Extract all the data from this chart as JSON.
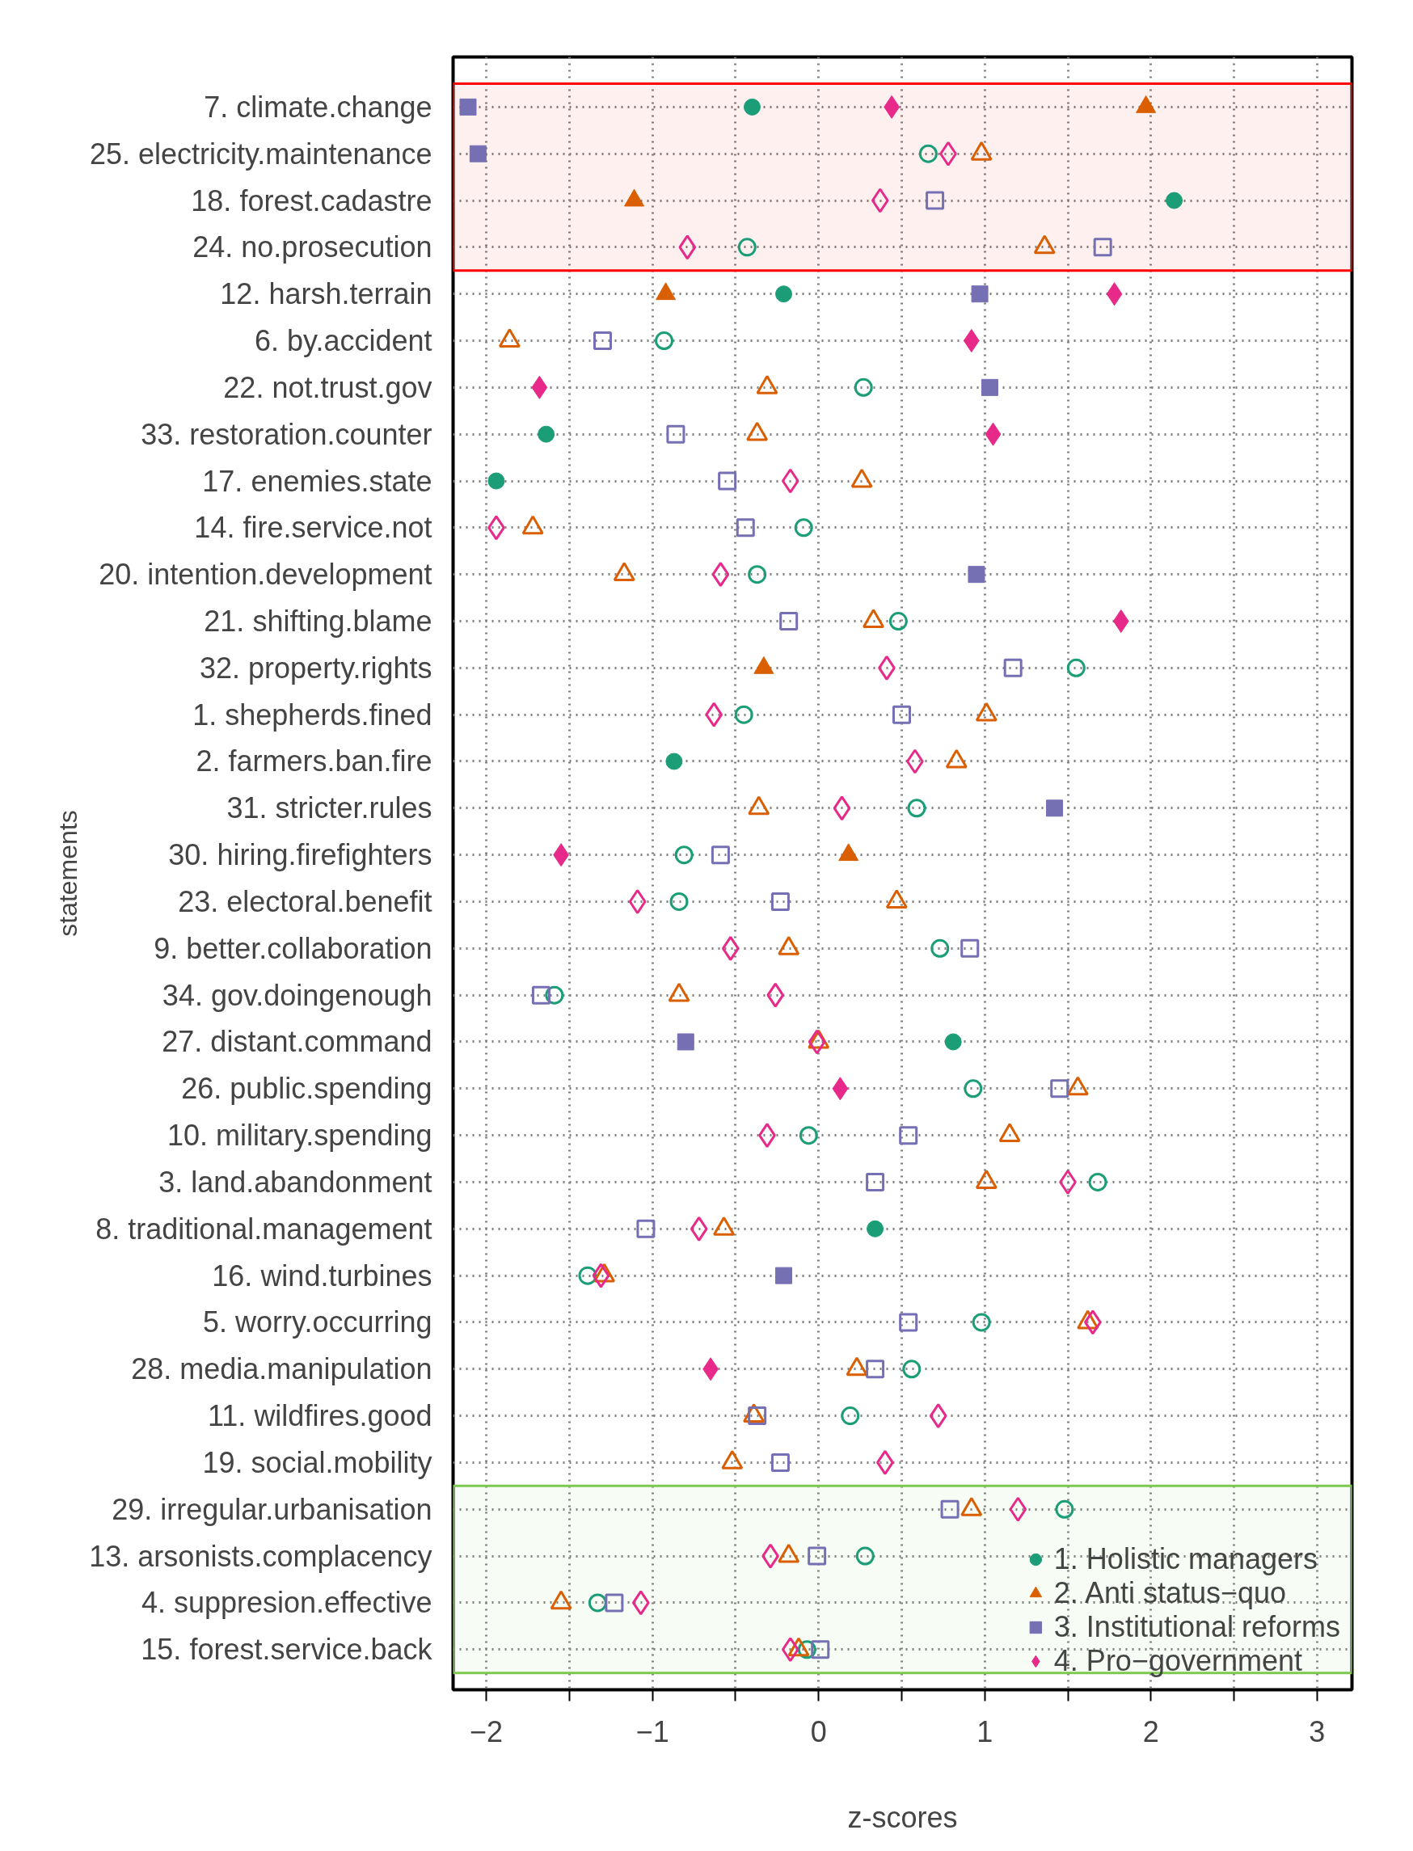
{
  "chart_data": {
    "type": "scatter",
    "xlabel": "z-scores",
    "ylabel": "statements",
    "categories": [
      "7. climate.change",
      "25. electricity.maintenance",
      "18. forest.cadastre",
      "24. no.prosecution",
      "12. harsh.terrain",
      "6. by.accident",
      "22. not.trust.gov",
      "33. restoration.counter",
      "17. enemies.state",
      "14. fire.service.not",
      "20. intention.development",
      "21. shifting.blame",
      "32. property.rights",
      "1. shepherds.fined",
      "2. farmers.ban.fire",
      "31. stricter.rules",
      "30. hiring.firefighters",
      "23. electoral.benefit",
      "9. better.collaboration",
      "34. gov.doingenough",
      "27. distant.command",
      "26. public.spending",
      "10. military.spending",
      "3. land.abandonment",
      "8. traditional.management",
      "16. wind.turbines",
      "5. worry.occurring",
      "28. media.manipulation",
      "11. wildfires.good",
      "19. social.mobility",
      "29. irregular.urbanisation",
      "13. arsonists.complacency",
      "4. suppresion.effective",
      "15. forest.service.back"
    ],
    "xlim": [
      -2.2,
      3.21
    ],
    "orientation": "horizontal",
    "xticks": [
      {
        "value": -2,
        "label": "−2"
      },
      {
        "value": -1.5,
        "label": null
      },
      {
        "value": -1,
        "label": "−1"
      },
      {
        "value": -0.5,
        "label": null
      },
      0,
      {
        "value": 0.5,
        "label": null
      },
      1,
      {
        "value": 1.5,
        "label": null
      },
      2,
      {
        "value": 2.5,
        "label": null
      },
      3
    ],
    "grid": true,
    "legend": "bottom right",
    "line_style": "dotted",
    "series": [
      {
        "name": "1. Holistic managers",
        "color": "#1b9e77",
        "marker": "circle",
        "values": [
          -0.4,
          null,
          2.14,
          null,
          -0.21,
          null,
          null,
          -1.64,
          -1.94,
          null,
          null,
          null,
          null,
          null,
          -0.87,
          null,
          null,
          null,
          null,
          null,
          0.81,
          null,
          null,
          null,
          0.34,
          null,
          null,
          null,
          null,
          null,
          null,
          null,
          null,
          null
        ]
      },
      {
        "color": "#1b9e77",
        "marker": "circle",
        "values": [
          null,
          0.66,
          null,
          -0.43,
          null,
          -0.93,
          0.27,
          null,
          null,
          -0.09,
          -0.37,
          0.48,
          1.55,
          -0.45,
          null,
          0.59,
          -0.81,
          -0.84,
          0.73,
          -1.59,
          null,
          0.93,
          -0.06,
          1.68,
          null,
          -1.39,
          0.98,
          0.56,
          0.19,
          null,
          1.48,
          0.28,
          -1.33,
          -0.07
        ]
      },
      {
        "name": "2. Anti status−quo",
        "color": "#d95f02",
        "marker": "triangle",
        "values": [
          1.97,
          null,
          -1.11,
          null,
          -0.92,
          null,
          null,
          null,
          null,
          null,
          null,
          null,
          -0.33,
          null,
          null,
          null,
          0.18,
          null,
          null,
          null,
          null,
          null,
          null,
          null,
          null,
          null,
          null,
          null,
          null,
          null,
          null,
          null,
          null,
          null
        ]
      },
      {
        "color": "#d95f02",
        "marker": "triangle",
        "values": [
          null,
          0.98,
          null,
          1.36,
          null,
          -1.86,
          -0.31,
          -0.37,
          0.26,
          -1.72,
          -1.17,
          0.33,
          null,
          1.01,
          0.83,
          -0.36,
          null,
          0.47,
          -0.18,
          -0.84,
          0.0,
          1.56,
          1.15,
          1.01,
          -0.57,
          -1.29,
          1.62,
          0.23,
          -0.39,
          -0.52,
          0.92,
          -0.18,
          -1.55,
          -0.12
        ]
      },
      {
        "name": "3. Institutional reforms",
        "color": "#7570b3",
        "marker": "square",
        "values": [
          -2.11,
          -2.05,
          null,
          null,
          0.97,
          null,
          1.03,
          null,
          null,
          null,
          0.95,
          null,
          null,
          null,
          null,
          1.42,
          null,
          null,
          null,
          null,
          -0.8,
          null,
          null,
          null,
          null,
          -0.21,
          null,
          null,
          null,
          null,
          null,
          null,
          null,
          null
        ]
      },
      {
        "color": "#7570b3",
        "marker": "square",
        "values": [
          null,
          null,
          0.7,
          1.71,
          null,
          -1.3,
          null,
          -0.86,
          -0.55,
          -0.44,
          null,
          -0.18,
          1.17,
          0.5,
          null,
          null,
          -0.59,
          -0.23,
          0.91,
          -1.67,
          null,
          1.45,
          0.54,
          0.34,
          -1.04,
          null,
          0.54,
          0.34,
          -0.37,
          -0.23,
          0.79,
          -0.01,
          -1.23,
          0.01
        ]
      },
      {
        "name": "4. Pro−government",
        "color": "#e7298a",
        "marker": "diamond",
        "values": [
          0.44,
          null,
          null,
          null,
          1.78,
          0.92,
          -1.68,
          1.05,
          null,
          null,
          null,
          1.82,
          null,
          null,
          null,
          null,
          -1.55,
          null,
          null,
          null,
          null,
          0.13,
          null,
          null,
          null,
          null,
          null,
          -0.65,
          null,
          null,
          null,
          null,
          null,
          null
        ]
      },
      {
        "color": "#e7298a",
        "marker": "diamond",
        "values": [
          null,
          0.78,
          0.37,
          -0.79,
          null,
          null,
          null,
          null,
          -0.17,
          -1.94,
          -0.59,
          null,
          0.41,
          -0.63,
          0.58,
          0.14,
          null,
          -1.09,
          -0.53,
          -0.26,
          -0.01,
          null,
          -0.31,
          1.5,
          -0.72,
          -1.31,
          1.65,
          null,
          0.72,
          0.4,
          1.2,
          -0.29,
          -1.07,
          -0.17
        ]
      }
    ],
    "bands": [
      {
        "axis": "y",
        "from": "7. climate.change",
        "to": "24. no.prosecution",
        "color": "#ff0000"
      },
      {
        "axis": "y",
        "from": "29. irregular.urbanisation",
        "to": "15. forest.service.back",
        "color": "#7ec850"
      }
    ]
  }
}
